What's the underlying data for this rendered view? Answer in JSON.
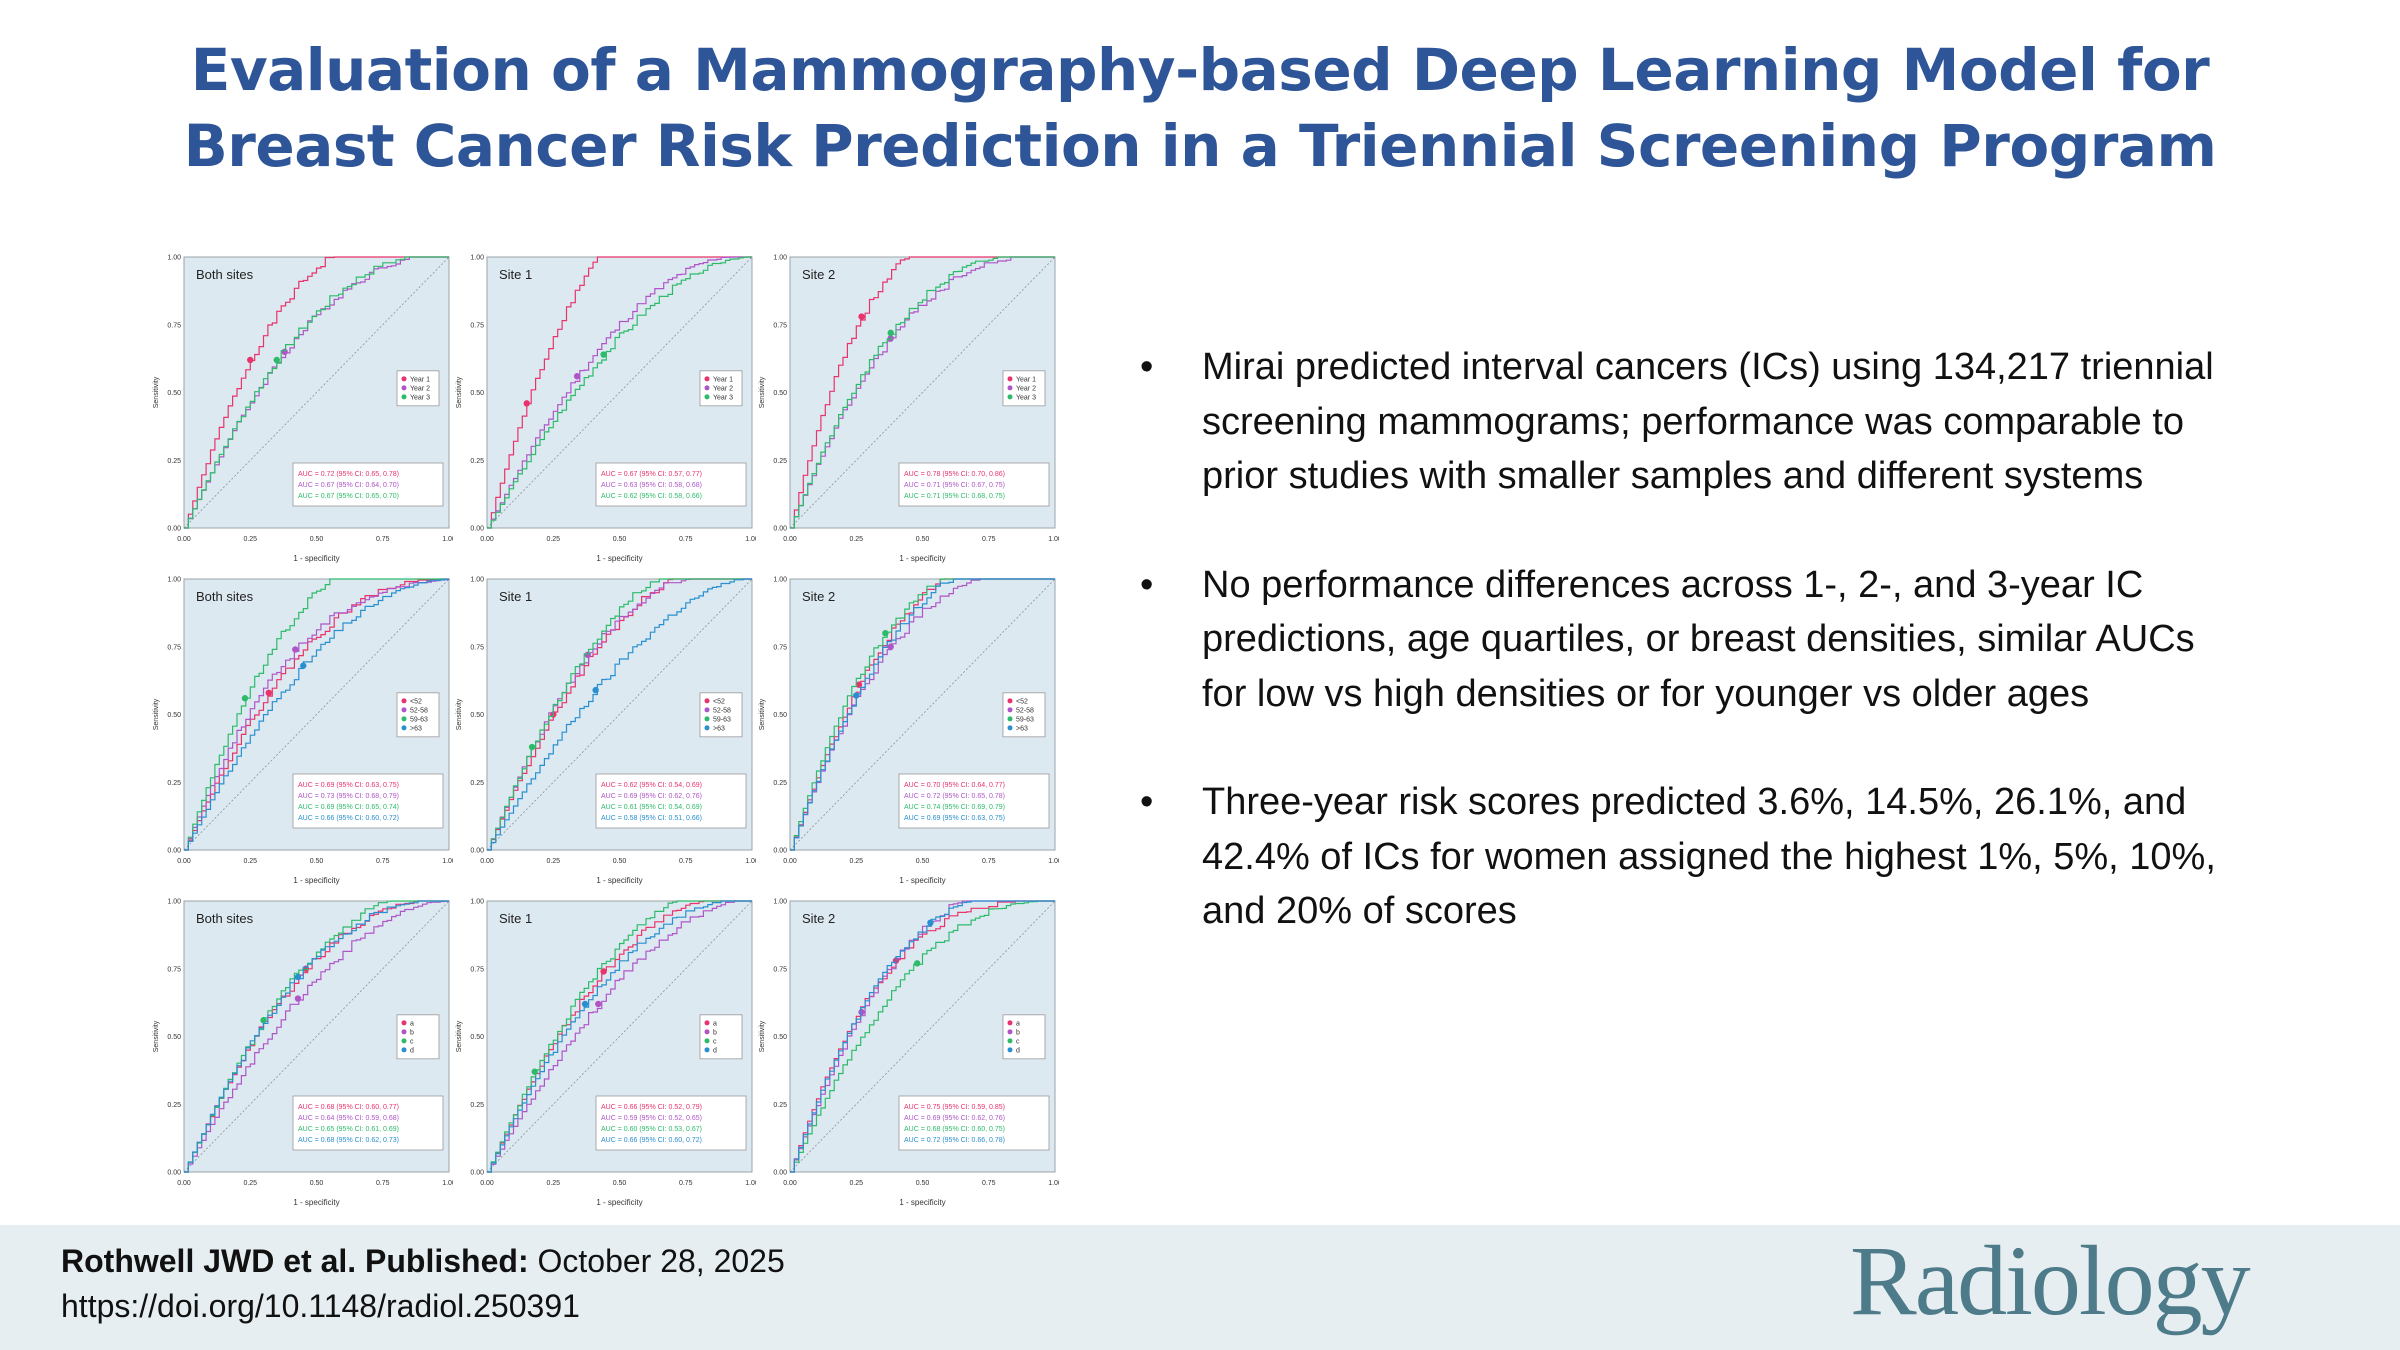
{
  "title": {
    "line1": "Evaluation of a Mammography-based Deep Learning Model for",
    "line2": "Breast Cancer Risk Prediction in a Triennial Screening Program"
  },
  "bullets": [
    {
      "symbol": "•",
      "text": "Mirai predicted interval cancers (ICs) using 134,217 triennial screening mammograms; performance was comparable to prior studies with smaller samples and different systems"
    },
    {
      "symbol": "•",
      "text": "No performance differences across 1-, 2-, and 3-year IC predictions, age quartiles, or breast densities, similar AUCs for low vs high densities or for younger vs older ages"
    },
    {
      "symbol": "•",
      "text": "Three-year risk scores predicted 3.6%, 14.5%, 26.1%, and 42.4% of ICs for women assigned the highest 1%, 5%, 10%, and 20% of scores"
    }
  ],
  "footer": {
    "authors": "Rothwell JWD et al. Published:",
    "date": "October 28, 2025",
    "doi": "https://doi.org/10.1148/radiol.250391",
    "logo": "Radiology"
  },
  "colors": {
    "title": "#2e5597",
    "series": [
      "#e8336b",
      "#b055c8",
      "#2dbb6a",
      "#2a8fd0"
    ],
    "panel_bg": "#dde9f1"
  },
  "chart_data": [
    {
      "type": "line",
      "title": "Both sites",
      "xlabel": "1 - specificity",
      "ylabel": "Sensitivity",
      "xlim": [
        0,
        1
      ],
      "ylim": [
        0,
        1
      ],
      "ticks": [
        "0.00",
        "0.25",
        "0.50",
        "0.75",
        "1.00"
      ],
      "series": [
        {
          "name": "Year 1",
          "auc": 0.72,
          "label": "AUC = 0.72 (95% CI: 0.65, 0.78)",
          "marker": [
            0.25,
            0.62
          ]
        },
        {
          "name": "Year 2",
          "auc": 0.67,
          "label": "AUC = 0.67 (95% CI: 0.64, 0.70)",
          "marker": [
            0.38,
            0.65
          ]
        },
        {
          "name": "Year 3",
          "auc": 0.67,
          "label": "AUC = 0.67 (95% CI: 0.65, 0.70)",
          "marker": [
            0.35,
            0.62
          ]
        }
      ]
    },
    {
      "type": "line",
      "title": "Site 1",
      "xlabel": "1 - specificity",
      "ylabel": "Sensitivity",
      "xlim": [
        0,
        1
      ],
      "ylim": [
        0,
        1
      ],
      "ticks": [
        "0.00",
        "0.25",
        "0.50",
        "0.75",
        "1.00"
      ],
      "series": [
        {
          "name": "Year 1",
          "auc": 0.67,
          "label": "AUC = 0.67 (95% CI: 0.57, 0.77)",
          "marker": [
            0.15,
            0.46
          ]
        },
        {
          "name": "Year 2",
          "auc": 0.63,
          "label": "AUC = 0.63 (95% CI: 0.58, 0.68)",
          "marker": [
            0.34,
            0.56
          ]
        },
        {
          "name": "Year 3",
          "auc": 0.62,
          "label": "AUC = 0.62 (95% CI: 0.58, 0.66)",
          "marker": [
            0.44,
            0.64
          ]
        }
      ]
    },
    {
      "type": "line",
      "title": "Site 2",
      "xlabel": "1 - specificity",
      "ylabel": "Sensitivity",
      "xlim": [
        0,
        1
      ],
      "ylim": [
        0,
        1
      ],
      "ticks": [
        "0.00",
        "0.25",
        "0.50",
        "0.75",
        "1.00"
      ],
      "series": [
        {
          "name": "Year 1",
          "auc": 0.78,
          "label": "AUC = 0.78 (95% CI: 0.70, 0.86)",
          "marker": [
            0.27,
            0.78
          ]
        },
        {
          "name": "Year 2",
          "auc": 0.71,
          "label": "AUC = 0.71 (95% CI: 0.67, 0.75)",
          "marker": [
            0.38,
            0.7
          ]
        },
        {
          "name": "Year 3",
          "auc": 0.71,
          "label": "AUC = 0.71 (95% CI: 0.68, 0.75)",
          "marker": [
            0.38,
            0.72
          ]
        }
      ]
    },
    {
      "type": "line",
      "title": "Both sites",
      "xlabel": "1 - specificity",
      "ylabel": "Sensitivity",
      "xlim": [
        0,
        1
      ],
      "ylim": [
        0,
        1
      ],
      "ticks": [
        "0.00",
        "0.25",
        "0.50",
        "0.75",
        "1.00"
      ],
      "series": [
        {
          "name": "<52",
          "auc": 0.69,
          "label": "AUC = 0.69 (95% CI: 0.63, 0.75)",
          "marker": [
            0.32,
            0.58
          ]
        },
        {
          "name": "52-58",
          "auc": 0.73,
          "label": "AUC = 0.73 (95% CI: 0.68, 0.79)",
          "marker": [
            0.42,
            0.74
          ]
        },
        {
          "name": "59-63",
          "auc": 0.69,
          "label": "AUC = 0.69 (95% CI: 0.65, 0.74)",
          "marker": [
            0.23,
            0.56
          ]
        },
        {
          "name": ">63",
          "auc": 0.66,
          "label": "AUC = 0.66 (95% CI: 0.60, 0.72)",
          "marker": [
            0.45,
            0.68
          ]
        }
      ]
    },
    {
      "type": "line",
      "title": "Site 1",
      "xlabel": "1 - specificity",
      "ylabel": "Sensitivity",
      "xlim": [
        0,
        1
      ],
      "ylim": [
        0,
        1
      ],
      "ticks": [
        "0.00",
        "0.25",
        "0.50",
        "0.75",
        "1.00"
      ],
      "series": [
        {
          "name": "<52",
          "auc": 0.62,
          "label": "AUC = 0.62 (95% CI: 0.54, 0.69)",
          "marker": [
            0.25,
            0.5
          ]
        },
        {
          "name": "52-58",
          "auc": 0.69,
          "label": "AUC = 0.69 (95% CI: 0.62, 0.76)",
          "marker": [
            0.38,
            0.72
          ]
        },
        {
          "name": "59-63",
          "auc": 0.61,
          "label": "AUC = 0.61 (95% CI: 0.54, 0.69)",
          "marker": [
            0.17,
            0.38
          ]
        },
        {
          "name": ">63",
          "auc": 0.58,
          "label": "AUC = 0.58 (95% CI: 0.51, 0.66)",
          "marker": [
            0.41,
            0.59
          ]
        }
      ]
    },
    {
      "type": "line",
      "title": "Site 2",
      "xlabel": "1 - specificity",
      "ylabel": "Sensitivity",
      "xlim": [
        0,
        1
      ],
      "ylim": [
        0,
        1
      ],
      "ticks": [
        "0.00",
        "0.25",
        "0.50",
        "0.75",
        "1.00"
      ],
      "series": [
        {
          "name": "<52",
          "auc": 0.7,
          "label": "AUC = 0.70 (95% CI: 0.64, 0.77)",
          "marker": [
            0.26,
            0.61
          ]
        },
        {
          "name": "52-58",
          "auc": 0.72,
          "label": "AUC = 0.72 (95% CI: 0.65, 0.78)",
          "marker": [
            0.38,
            0.75
          ]
        },
        {
          "name": "59-63",
          "auc": 0.74,
          "label": "AUC = 0.74 (95% CI: 0.69, 0.79)",
          "marker": [
            0.36,
            0.8
          ]
        },
        {
          "name": ">63",
          "auc": 0.69,
          "label": "AUC = 0.69 (95% CI: 0.63, 0.75)",
          "marker": [
            0.25,
            0.57
          ]
        }
      ]
    },
    {
      "type": "line",
      "title": "Both sites",
      "xlabel": "1 - specificity",
      "ylabel": "Sensitivity",
      "xlim": [
        0,
        1
      ],
      "ylim": [
        0,
        1
      ],
      "ticks": [
        "0.00",
        "0.25",
        "0.50",
        "0.75",
        "1.00"
      ],
      "series": [
        {
          "name": "a",
          "auc": 0.68,
          "label": "AUC = 0.68 (95% CI: 0.60, 0.77)",
          "marker": [
            0.46,
            0.75
          ]
        },
        {
          "name": "b",
          "auc": 0.64,
          "label": "AUC = 0.64 (95% CI: 0.59, 0.68)",
          "marker": [
            0.43,
            0.64
          ]
        },
        {
          "name": "c",
          "auc": 0.65,
          "label": "AUC = 0.65 (95% CI: 0.61, 0.69)",
          "marker": [
            0.3,
            0.56
          ]
        },
        {
          "name": "d",
          "auc": 0.68,
          "label": "AUC = 0.68 (95% CI: 0.62, 0.73)",
          "marker": [
            0.43,
            0.72
          ]
        }
      ]
    },
    {
      "type": "line",
      "title": "Site 1",
      "xlabel": "1 - specificity",
      "ylabel": "Sensitivity",
      "xlim": [
        0,
        1
      ],
      "ylim": [
        0,
        1
      ],
      "ticks": [
        "0.00",
        "0.25",
        "0.50",
        "0.75",
        "1.00"
      ],
      "series": [
        {
          "name": "a",
          "auc": 0.66,
          "label": "AUC = 0.66 (95% CI: 0.52, 0.79)",
          "marker": [
            0.44,
            0.74
          ]
        },
        {
          "name": "b",
          "auc": 0.59,
          "label": "AUC = 0.59 (95% CI: 0.52, 0.65)",
          "marker": [
            0.42,
            0.62
          ]
        },
        {
          "name": "c",
          "auc": 0.6,
          "label": "AUC = 0.60 (95% CI: 0.53, 0.67)",
          "marker": [
            0.18,
            0.37
          ]
        },
        {
          "name": "d",
          "auc": 0.66,
          "label": "AUC = 0.66 (95% CI: 0.60, 0.72)",
          "marker": [
            0.37,
            0.62
          ]
        }
      ]
    },
    {
      "type": "line",
      "title": "Site 2",
      "xlabel": "1 - specificity",
      "ylabel": "Sensitivity",
      "xlim": [
        0,
        1
      ],
      "ylim": [
        0,
        1
      ],
      "ticks": [
        "0.00",
        "0.25",
        "0.50",
        "0.75",
        "1.00"
      ],
      "series": [
        {
          "name": "a",
          "auc": 0.75,
          "label": "AUC = 0.75 (95% CI: 0.59, 0.85)",
          "marker": [
            0.4,
            0.78
          ]
        },
        {
          "name": "b",
          "auc": 0.69,
          "label": "AUC = 0.69 (95% CI: 0.62, 0.76)",
          "marker": [
            0.27,
            0.59
          ]
        },
        {
          "name": "c",
          "auc": 0.68,
          "label": "AUC = 0.68 (95% CI: 0.60, 0.75)",
          "marker": [
            0.48,
            0.77
          ]
        },
        {
          "name": "d",
          "auc": 0.72,
          "label": "AUC = 0.72 (95% CI: 0.66, 0.78)",
          "marker": [
            0.53,
            0.92
          ]
        }
      ]
    }
  ]
}
